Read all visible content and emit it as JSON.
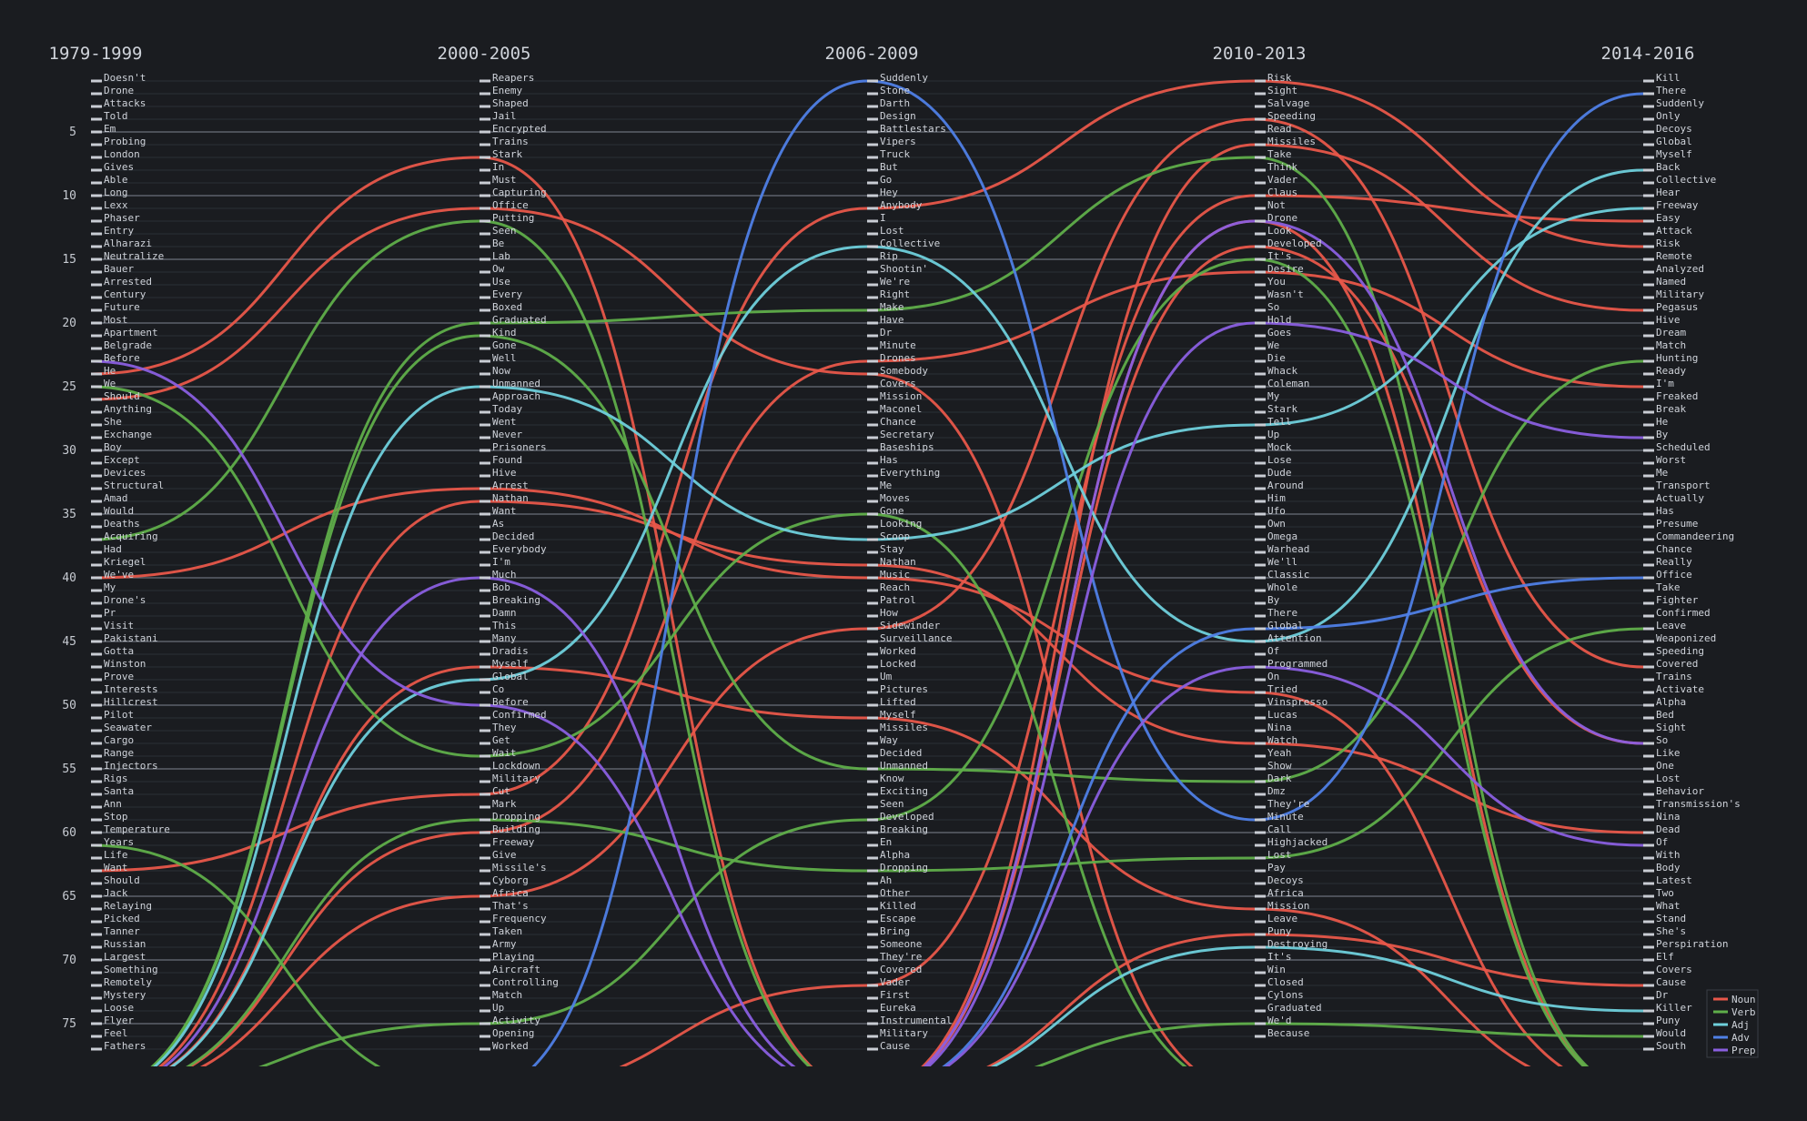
{
  "chart_data": {
    "type": "line",
    "title": "",
    "xlabel": "",
    "ylabel": "",
    "ylim": [
      1,
      77
    ],
    "y_ticks": [
      5,
      10,
      15,
      20,
      25,
      30,
      35,
      40,
      45,
      50,
      55,
      60,
      65,
      70,
      75
    ],
    "grid": true,
    "legend_position": "bottom-right",
    "categories": [
      "1979-1999",
      "2000-2005",
      "2006-2009",
      "2010-2013",
      "2014-2016"
    ],
    "columns": [
      [
        "Doesn't",
        "Drone",
        "Attacks",
        "Told",
        "Em",
        "Probing",
        "London",
        "Gives",
        "Able",
        "Long",
        "Lexx",
        "Phaser",
        "Entry",
        "Alharazi",
        "Neutralize",
        "Bauer",
        "Arrested",
        "Century",
        "Future",
        "Most",
        "Apartment",
        "Belgrade",
        "Before",
        "He",
        "We",
        "Should",
        "Anything",
        "She",
        "Exchange",
        "Boy",
        "Except",
        "Devices",
        "Structural",
        "Amad",
        "Would",
        "Deaths",
        "Acquiring",
        "Had",
        "Kriegel",
        "We've",
        "My",
        "Drone's",
        "Pr",
        "Visit",
        "Pakistani",
        "Gotta",
        "Winston",
        "Prove",
        "Interests",
        "Hillcrest",
        "Pilot",
        "Seawater",
        "Cargo",
        "Range",
        "Injectors",
        "Rigs",
        "Santa",
        "Ann",
        "Stop",
        "Temperature",
        "Years",
        "Life",
        "Want",
        "Should",
        "Jack",
        "Relaying",
        "Picked",
        "Tanner",
        "Russian",
        "Largest",
        "Something",
        "Remotely",
        "Mystery",
        "Loose",
        "Flyer",
        "Feel",
        "Fathers"
      ],
      [
        "Reapers",
        "Enemy",
        "Shaped",
        "Jail",
        "Encrypted",
        "Trains",
        "Stark",
        "In",
        "Must",
        "Capturing",
        "Office",
        "Putting",
        "Seen",
        "Be",
        "Lab",
        "Ow",
        "Use",
        "Every",
        "Boxed",
        "Graduated",
        "Kind",
        "Gone",
        "Well",
        "Now",
        "Unmanned",
        "Approach",
        "Today",
        "Went",
        "Never",
        "Prisoners",
        "Found",
        "Hive",
        "Arrest",
        "Nathan",
        "Want",
        "As",
        "Decided",
        "Everybody",
        "I'm",
        "Much",
        "Bob",
        "Breaking",
        "Damn",
        "This",
        "Many",
        "Dradis",
        "Myself",
        "Global",
        "Co",
        "Before",
        "Confirmed",
        "They",
        "Get",
        "Wait",
        "Lockdown",
        "Military",
        "Cut",
        "Mark",
        "Dropping",
        "Building",
        "Freeway",
        "Give",
        "Missile's",
        "Cyborg",
        "Africa",
        "That's",
        "Frequency",
        "Taken",
        "Army",
        "Playing",
        "Aircraft",
        "Controlling",
        "Match",
        "Up",
        "Activity",
        "Opening",
        "Worked"
      ],
      [
        "Suddenly",
        "Stone",
        "Darth",
        "Design",
        "Battlestars",
        "Vipers",
        "Truck",
        "But",
        "Go",
        "Hey",
        "Anybody",
        "I",
        "Lost",
        "Collective",
        "Rip",
        "Shootin'",
        "We're",
        "Right",
        "Make",
        "Have",
        "Dr",
        "Minute",
        "Drones",
        "Somebody",
        "Covers",
        "Mission",
        "Maconel",
        "Chance",
        "Secretary",
        "Baseships",
        "Has",
        "Everything",
        "Me",
        "Moves",
        "Gone",
        "Looking",
        "Scoop",
        "Stay",
        "Nathan",
        "Music",
        "Reach",
        "Patrol",
        "How",
        "Sidewinder",
        "Surveillance",
        "Worked",
        "Locked",
        "Um",
        "Pictures",
        "Lifted",
        "Myself",
        "Missiles",
        "Way",
        "Decided",
        "Unmanned",
        "Know",
        "Exciting",
        "Seen",
        "Developed",
        "Breaking",
        "En",
        "Alpha",
        "Dropping",
        "Ah",
        "Other",
        "Killed",
        "Escape",
        "Bring",
        "Someone",
        "They're",
        "Covered",
        "Vader",
        "First",
        "Eureka",
        "Instrumental",
        "Military",
        "Cause"
      ],
      [
        "Risk",
        "Sight",
        "Salvage",
        "Speeding",
        "Read",
        "Missiles",
        "Take",
        "Think",
        "Vader",
        "Claus",
        "Not",
        "Drone",
        "Look",
        "Developed",
        "It's",
        "Desire",
        "You",
        "Wasn't",
        "So",
        "Hold",
        "Goes",
        "We",
        "Die",
        "Whack",
        "Coleman",
        "My",
        "Stark",
        "Tell",
        "Up",
        "Mock",
        "Lose",
        "Dude",
        "Around",
        "Him",
        "Ufo",
        "Own",
        "Omega",
        "Warhead",
        "We'll",
        "Classic",
        "Whole",
        "By",
        "There",
        "Global",
        "Attention",
        "Of",
        "Programmed",
        "On",
        "Tried",
        "Vinspresso",
        "Lucas",
        "Nina",
        "Watch",
        "Yeah",
        "Show",
        "Dark",
        "Dmz",
        "They're",
        "Minute",
        "Call",
        "Highjacked",
        "Lost",
        "Pay",
        "Decoys",
        "Africa",
        "Mission",
        "Leave",
        "Puny",
        "Destroying",
        "It's",
        "Win",
        "Closed",
        "Cylons",
        "Graduated",
        "We'd",
        "Because"
      ],
      [
        "Kill",
        "There",
        "Suddenly",
        "Only",
        "Decoys",
        "Global",
        "Myself",
        "Back",
        "Collective",
        "Hear",
        "Freeway",
        "Easy",
        "Attack",
        "Risk",
        "Remote",
        "Analyzed",
        "Named",
        "Military",
        "Pegasus",
        "Hive",
        "Dream",
        "Match",
        "Hunting",
        "Ready",
        "I'm",
        "Freaked",
        "Break",
        "He",
        "By",
        "Scheduled",
        "Worst",
        "Me",
        "Transport",
        "Actually",
        "Has",
        "Presume",
        "Commandeering",
        "Chance",
        "Really",
        "Office",
        "Take",
        "Fighter",
        "Confirmed",
        "Leave",
        "Weaponized",
        "Speeding",
        "Covered",
        "Trains",
        "Activate",
        "Alpha",
        "Bed",
        "Sight",
        "So",
        "Like",
        "One",
        "Lost",
        "Behavior",
        "Transmission's",
        "Nina",
        "Dead",
        "Of",
        "With",
        "Body",
        "Latest",
        "Two",
        "What",
        "Stand",
        "She's",
        "Perspiration",
        "Elf",
        "Covers",
        "Cause",
        "Dr",
        "Killer",
        "Puny",
        "Would",
        "South"
      ]
    ],
    "series": [
      {
        "name": "Noun",
        "color": "#e8574a"
      },
      {
        "name": "Verb",
        "color": "#5fae4a"
      },
      {
        "name": "Adj",
        "color": "#6fd0dc"
      },
      {
        "name": "Adv",
        "color": "#4f80e6"
      },
      {
        "name": "Prep",
        "color": "#8a5fe0"
      }
    ],
    "flows": [
      {
        "pos": "Noun",
        "ranks": [
          24,
          7,
          null,
          12,
          null
        ]
      },
      {
        "pos": "Noun",
        "ranks": [
          26,
          11,
          24,
          null,
          null
        ]
      },
      {
        "pos": "Noun",
        "ranks": [
          40,
          33,
          40,
          49,
          null
        ]
      },
      {
        "pos": "Noun",
        "ranks": [
          63,
          57,
          11,
          1,
          14
        ]
      },
      {
        "pos": "Noun",
        "ranks": [
          null,
          34,
          39,
          53,
          60
        ]
      },
      {
        "pos": "Noun",
        "ranks": [
          null,
          47,
          51,
          66,
          null
        ]
      },
      {
        "pos": "Noun",
        "ranks": [
          null,
          60,
          23,
          16,
          25
        ]
      },
      {
        "pos": "Noun",
        "ranks": [
          null,
          65,
          44,
          4,
          47
        ]
      },
      {
        "pos": "Noun",
        "ranks": [
          null,
          null,
          72,
          10,
          12
        ]
      },
      {
        "pos": "Noun",
        "ranks": [
          null,
          null,
          null,
          6,
          19
        ]
      },
      {
        "pos": "Noun",
        "ranks": [
          null,
          null,
          null,
          14,
          53
        ]
      },
      {
        "pos": "Noun",
        "ranks": [
          null,
          null,
          null,
          68,
          72
        ]
      },
      {
        "pos": "Verb",
        "ranks": [
          61,
          null,
          null,
          null,
          null
        ]
      },
      {
        "pos": "Verb",
        "ranks": [
          25,
          54,
          35,
          null,
          null
        ]
      },
      {
        "pos": "Verb",
        "ranks": [
          37,
          12,
          null,
          null,
          null
        ]
      },
      {
        "pos": "Verb",
        "ranks": [
          null,
          20,
          19,
          7,
          null
        ]
      },
      {
        "pos": "Verb",
        "ranks": [
          null,
          21,
          55,
          56,
          23
        ]
      },
      {
        "pos": "Verb",
        "ranks": [
          null,
          59,
          63,
          62,
          44
        ]
      },
      {
        "pos": "Verb",
        "ranks": [
          null,
          75,
          59,
          15,
          null
        ]
      },
      {
        "pos": "Verb",
        "ranks": [
          null,
          null,
          null,
          75,
          76
        ]
      },
      {
        "pos": "Adj",
        "ranks": [
          null,
          25,
          37,
          28,
          11
        ]
      },
      {
        "pos": "Adj",
        "ranks": [
          null,
          48,
          14,
          45,
          8
        ]
      },
      {
        "pos": "Adj",
        "ranks": [
          null,
          null,
          null,
          69,
          74
        ]
      },
      {
        "pos": "Adv",
        "ranks": [
          null,
          null,
          1,
          59,
          2
        ]
      },
      {
        "pos": "Adv",
        "ranks": [
          null,
          null,
          null,
          44,
          40
        ]
      },
      {
        "pos": "Prep",
        "ranks": [
          23,
          50,
          null,
          null,
          null
        ]
      },
      {
        "pos": "Prep",
        "ranks": [
          null,
          40,
          null,
          12,
          53
        ]
      },
      {
        "pos": "Prep",
        "ranks": [
          null,
          null,
          null,
          20,
          29
        ]
      },
      {
        "pos": "Prep",
        "ranks": [
          null,
          null,
          null,
          47,
          61
        ]
      }
    ]
  }
}
